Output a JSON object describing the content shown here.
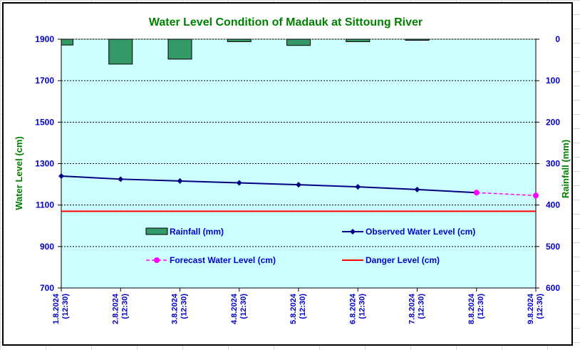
{
  "chart_data": {
    "type": "bar+line",
    "title": "Water Level Condition of Madauk at Sittoung River",
    "ylabel_left": "Water Level (cm)",
    "ylabel_right": "Rainfall (mm)",
    "ylim_left": [
      700,
      1900
    ],
    "yticks_left": [
      700,
      900,
      1100,
      1300,
      1500,
      1700,
      1900
    ],
    "ylim_right": [
      0,
      600
    ],
    "yticks_right": [
      0,
      100,
      200,
      300,
      400,
      500,
      600
    ],
    "right_axis_inverted": true,
    "grid": "horizontal dotted",
    "categories": [
      [
        "1.8.2024",
        "(12:30)"
      ],
      [
        "2.8.2024",
        "(12:30)"
      ],
      [
        "3.8.2024",
        "(12:30)"
      ],
      [
        "4.8.2024",
        "(12:30)"
      ],
      [
        "5.8.2024",
        "(12:30)"
      ],
      [
        "6.8.2024",
        "(12:30)"
      ],
      [
        "7.8.2024",
        "(12:30)"
      ],
      [
        "8.8.2024",
        "(12:30)"
      ],
      [
        "9.8.2024",
        "(12:30)"
      ]
    ],
    "series": [
      {
        "name": "Rainfall (mm)",
        "kind": "bar",
        "axis": "right",
        "color": "#339966",
        "values": [
          14,
          60,
          48,
          6,
          15,
          6,
          2,
          0,
          0
        ]
      },
      {
        "name": "Observed Water Level (cm)",
        "kind": "line",
        "axis": "left",
        "color": "#000080",
        "values": [
          1240,
          1225,
          1216,
          1207,
          1198,
          1188,
          1175,
          1160,
          null
        ]
      },
      {
        "name": "Forecast Water Level (cm)",
        "kind": "line-dashed",
        "axis": "left",
        "color": "#ff00ff",
        "values": [
          null,
          null,
          null,
          null,
          null,
          null,
          null,
          1160,
          1146
        ]
      },
      {
        "name": "Danger Level (cm)",
        "kind": "line",
        "axis": "left",
        "color": "#ff0000",
        "values": [
          1070,
          1070,
          1070,
          1070,
          1070,
          1070,
          1070,
          1070,
          1070
        ]
      }
    ],
    "legend_placement": "inside-bottom"
  },
  "colors": {
    "plot_background": "#ccffff",
    "title": "#008000",
    "tick_labels": "#0000cc"
  }
}
